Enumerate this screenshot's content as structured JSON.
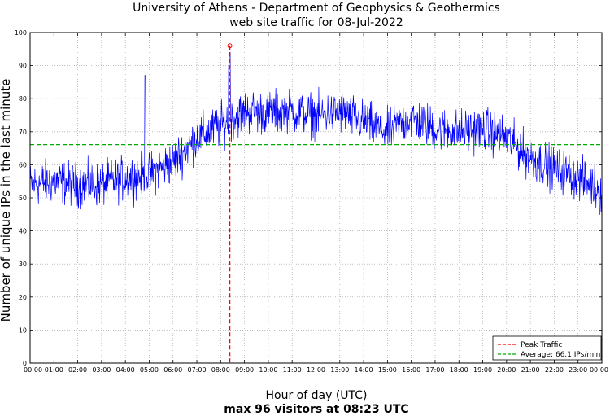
{
  "chart_data": {
    "type": "line",
    "title": "University of Athens - Department of Geophysics & Geothermics",
    "subtitle": "web site traffic for 08-Jul-2022",
    "xlabel": "Hour of day (UTC)",
    "caption": "max 96 visitors at 08:23 UTC",
    "ylabel": "Number of unique IPs in the last minute",
    "ylim": [
      0,
      100
    ],
    "y_ticks": [
      "0",
      "10",
      "20",
      "30",
      "40",
      "50",
      "60",
      "70",
      "80",
      "90",
      "100"
    ],
    "x_ticks": [
      "00:00",
      "01:00",
      "02:00",
      "03:00",
      "04:00",
      "05:00",
      "06:00",
      "07:00",
      "08:00",
      "09:00",
      "10:00",
      "11:00",
      "12:00",
      "13:00",
      "14:00",
      "15:00",
      "16:00",
      "17:00",
      "18:00",
      "19:00",
      "20:00",
      "21:00",
      "22:00",
      "23:00",
      "00:00"
    ],
    "xlim_hours": [
      0,
      24
    ],
    "grid": true,
    "legend_position": "bottom-right",
    "series": [
      {
        "kind": "per-minute traffic",
        "color": "#0000ff",
        "hourly_mean": [
          [
            0,
            54
          ],
          [
            1,
            55
          ],
          [
            2,
            54
          ],
          [
            3,
            54
          ],
          [
            4,
            56
          ],
          [
            5,
            57
          ],
          [
            6,
            61
          ],
          [
            7,
            68
          ],
          [
            8,
            72
          ],
          [
            9,
            76
          ],
          [
            10,
            76
          ],
          [
            11,
            76
          ],
          [
            12,
            75
          ],
          [
            13,
            76
          ],
          [
            14,
            73
          ],
          [
            15,
            70
          ],
          [
            16,
            74
          ],
          [
            17,
            71
          ],
          [
            18,
            70
          ],
          [
            19,
            71
          ],
          [
            20,
            68
          ],
          [
            21,
            62
          ],
          [
            22,
            59
          ],
          [
            23,
            56
          ],
          [
            24,
            52
          ]
        ],
        "noise_amplitude": 5,
        "spikes": [
          [
            4.83,
            87
          ],
          [
            8.35,
            90
          ],
          [
            8.38,
            94
          ],
          [
            23.9,
            45
          ]
        ]
      },
      {
        "name": "Peak Traffic",
        "kind": "peak",
        "color": "#ff0000",
        "x_hour": 8.383,
        "y": 96
      },
      {
        "name": "Average: 66.1 IPs/min",
        "kind": "average",
        "color": "#00aa00",
        "y": 66.1
      }
    ]
  }
}
